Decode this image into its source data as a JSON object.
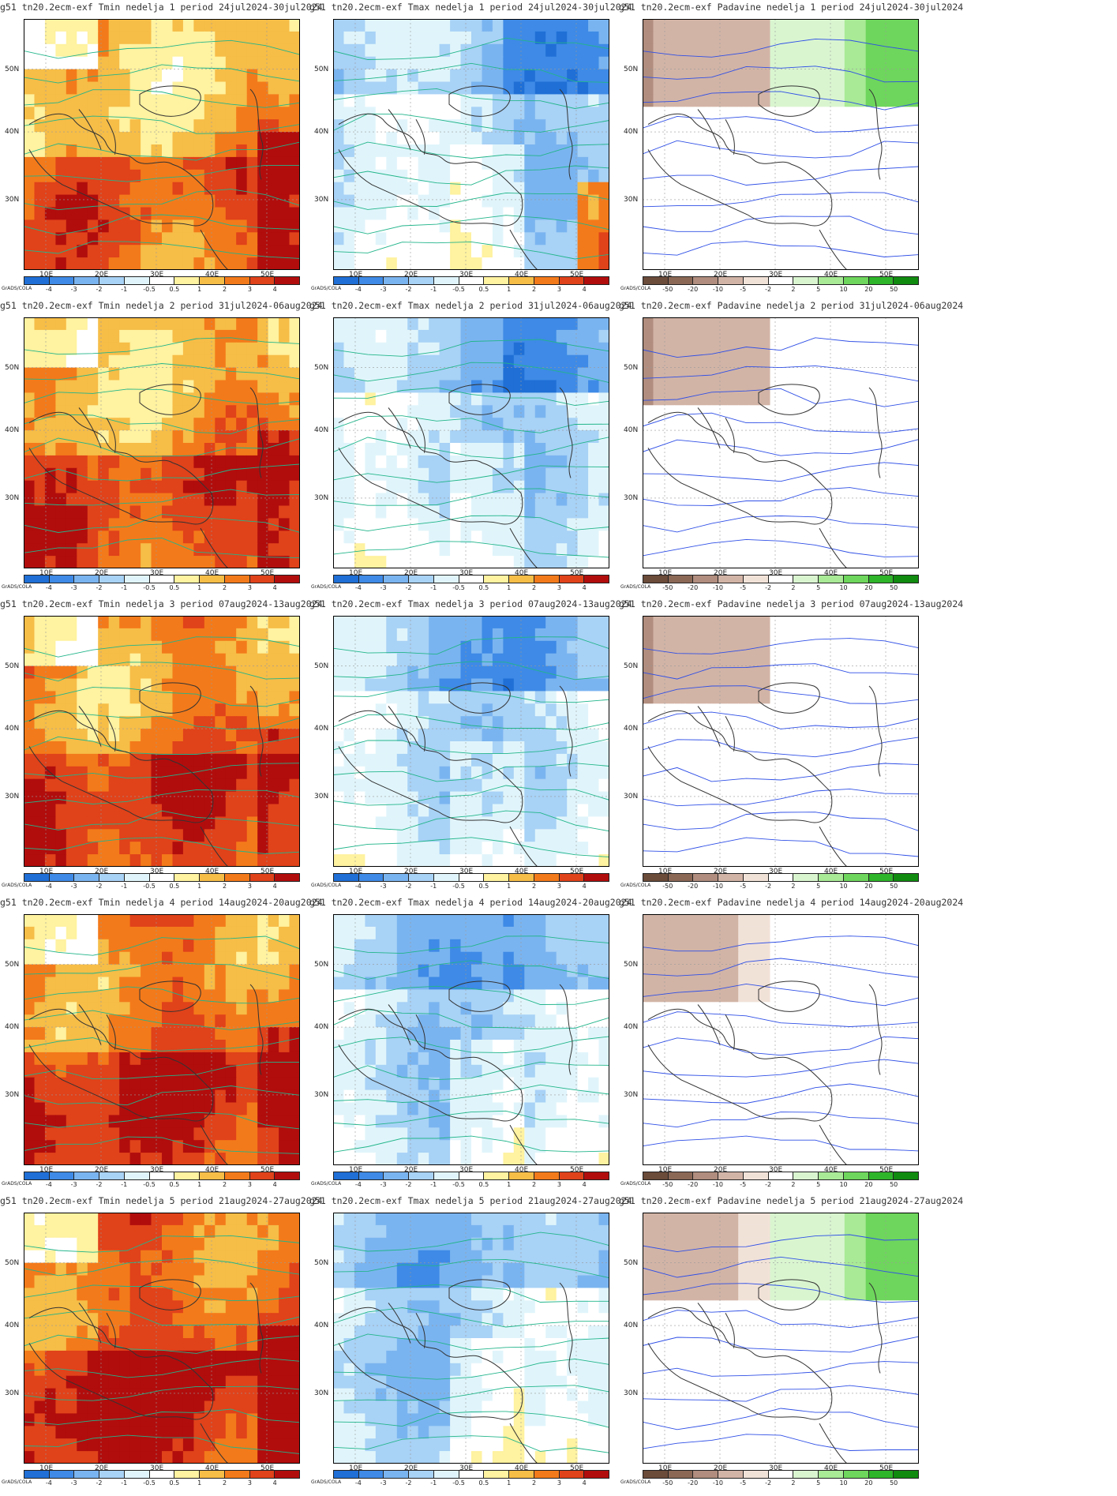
{
  "layout": {
    "rows": 5,
    "cols": 3
  },
  "colorbars": {
    "temperature": {
      "labels": [
        "-4",
        "-3",
        "-2",
        "-1",
        "-0.5",
        "0.5",
        "1",
        "2",
        "3",
        "4"
      ],
      "colors": [
        "#1f6fd6",
        "#3e8ae6",
        "#7ab4f0",
        "#a8d2f6",
        "#e0f5fb",
        "#ffffff",
        "#fff2a0",
        "#f6bd47",
        "#f37a1a",
        "#e0421a",
        "#b10d0d"
      ]
    },
    "precipitation": {
      "labels": [
        "-50",
        "-20",
        "-10",
        "-5",
        "-2",
        "2",
        "5",
        "10",
        "20",
        "50"
      ],
      "colors": [
        "#6b4b3a",
        "#8b6856",
        "#b08d7e",
        "#d2b4a6",
        "#f1e2d8",
        "#ffffff",
        "#d9f5d0",
        "#a8ea96",
        "#6ed65c",
        "#2fb52a",
        "#118a10"
      ]
    }
  },
  "axes": {
    "y_labels": [
      "50N",
      "40N",
      "30N"
    ],
    "x_labels": [
      "10E",
      "20E",
      "30E",
      "40E",
      "50E"
    ]
  },
  "grads_label": "GrADS/COLA",
  "panels": [
    {
      "title": "g51 tn20.2ecm-exf Tmin nedelja 1 period 24jul2024-30jul2024",
      "var": "tmin",
      "colorbar": "temperature"
    },
    {
      "title": "g51 tn20.2ecm-exf Tmax nedelja 1 period 24jul2024-30jul2024",
      "var": "tmax",
      "colorbar": "temperature"
    },
    {
      "title": "g51 tn20.2ecm-exf Padavine nedelja 1 period 24jul2024-30jul2024",
      "var": "precip",
      "colorbar": "precipitation"
    },
    {
      "title": "g51 tn20.2ecm-exf Tmin nedelja 2 period 31jul2024-06aug2024",
      "var": "tmin",
      "colorbar": "temperature"
    },
    {
      "title": "g51 tn20.2ecm-exf Tmax nedelja 2 period 31jul2024-06aug2024",
      "var": "tmax",
      "colorbar": "temperature"
    },
    {
      "title": "g51 tn20.2ecm-exf Padavine nedelja 2 period 31jul2024-06aug2024",
      "var": "precip",
      "colorbar": "precipitation"
    },
    {
      "title": "g51 tn20.2ecm-exf Tmin nedelja 3 period 07aug2024-13aug2024",
      "var": "tmin",
      "colorbar": "temperature"
    },
    {
      "title": "g51 tn20.2ecm-exf Tmax nedelja 3 period 07aug2024-13aug2024",
      "var": "tmax",
      "colorbar": "temperature"
    },
    {
      "title": "g51 tn20.2ecm-exf Padavine nedelja 3 period 07aug2024-13aug2024",
      "var": "precip",
      "colorbar": "precipitation"
    },
    {
      "title": "g51 tn20.2ecm-exf Tmin nedelja 4 period 14aug2024-20aug2024",
      "var": "tmin",
      "colorbar": "temperature"
    },
    {
      "title": "g51 tn20.2ecm-exf Tmax nedelja 4 period 14aug2024-20aug2024",
      "var": "tmax",
      "colorbar": "temperature"
    },
    {
      "title": "g51 tn20.2ecm-exf Padavine nedelja 4 period 14aug2024-20aug2024",
      "var": "precip",
      "colorbar": "precipitation"
    },
    {
      "title": "g51 tn20.2ecm-exf Tmin nedelja 5 period 21aug2024-27aug2024",
      "var": "tmin",
      "colorbar": "temperature"
    },
    {
      "title": "g51 tn20.2ecm-exf Tmax nedelja 5 period 21aug2024-27aug2024",
      "var": "tmax",
      "colorbar": "temperature"
    },
    {
      "title": "g51 tn20.2ecm-exf Padavine nedelja 5 period 21aug2024-27aug2024",
      "var": "precip",
      "colorbar": "precipitation"
    }
  ]
}
